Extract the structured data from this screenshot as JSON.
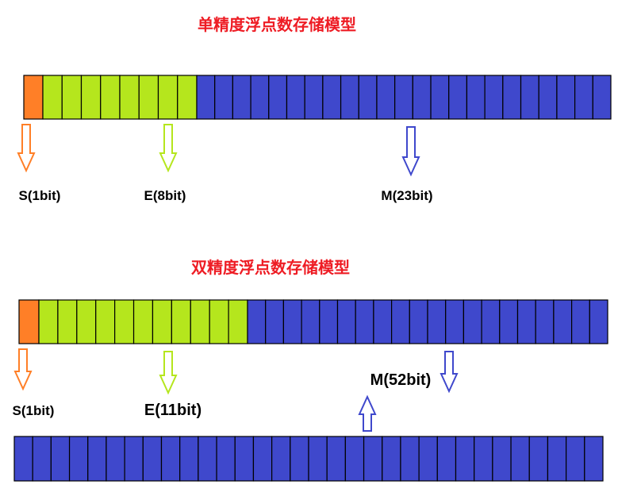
{
  "colors": {
    "sign": "#ff7f27",
    "exponent": "#b5e61d",
    "mantissa": "#3f48cc",
    "title": "#ee1c24",
    "border": "#000000"
  },
  "single": {
    "title": "单精度浮点数存储模型",
    "sign_bits": 1,
    "exponent_bits": 8,
    "mantissa_bits": 23,
    "labels": {
      "sign": "S(1bit)",
      "exponent": "E(8bit)",
      "mantissa": "M(23bit)"
    }
  },
  "double": {
    "title": "双精度浮点数存储模型",
    "sign_bits": 1,
    "exponent_bits": 11,
    "mantissa_bits": 52,
    "mantissa_bits_row1": 20,
    "mantissa_bits_row2": 32,
    "labels": {
      "sign": "S(1bit)",
      "exponent": "E(11bit)",
      "mantissa": "M(52bit)"
    }
  }
}
